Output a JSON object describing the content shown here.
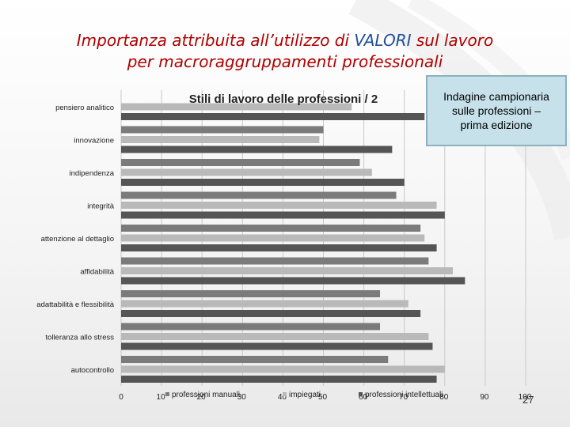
{
  "slide": {
    "title_part1": "Importanza attribuita all’utilizzo di ",
    "title_accent": "VALORI",
    "title_part2": " sul lavoro",
    "title_line2": "per macroraggruppamenti professionali",
    "accent_color": "#1f4e9c",
    "title_color": "#b00000",
    "info_box": [
      "Indagine campionaria",
      "sulle professioni –",
      "prima edizione"
    ],
    "page_number": "27"
  },
  "chart_data": {
    "type": "bar",
    "orientation": "horizontal",
    "title": "Stili di lavoro delle professioni / 2",
    "categories": [
      "pensiero analitico",
      "innovazione",
      "indipendenza",
      "integrità",
      "attenzione al dettaglio",
      "affidabilità",
      "adattabilità e flessibilità",
      "tolleranza allo stress",
      "autocontrollo"
    ],
    "series": [
      {
        "name": "professioni manuali",
        "color": "#7b7b7b",
        "values": [
          0,
          50,
          59,
          68,
          74,
          76,
          64,
          64,
          66
        ]
      },
      {
        "name": "impiegati",
        "color": "#b9b9b9",
        "values": [
          57,
          49,
          62,
          78,
          75,
          82,
          71,
          76,
          80
        ]
      },
      {
        "name": "professioni intellettuali",
        "color": "#555555",
        "values": [
          75,
          67,
          70,
          80,
          78,
          85,
          74,
          77,
          78
        ]
      }
    ],
    "xlim": [
      0,
      100
    ],
    "xticks": [
      0,
      10,
      20,
      30,
      40,
      50,
      60,
      70,
      80,
      90,
      100
    ],
    "grid": true,
    "legend_position": "bottom"
  }
}
